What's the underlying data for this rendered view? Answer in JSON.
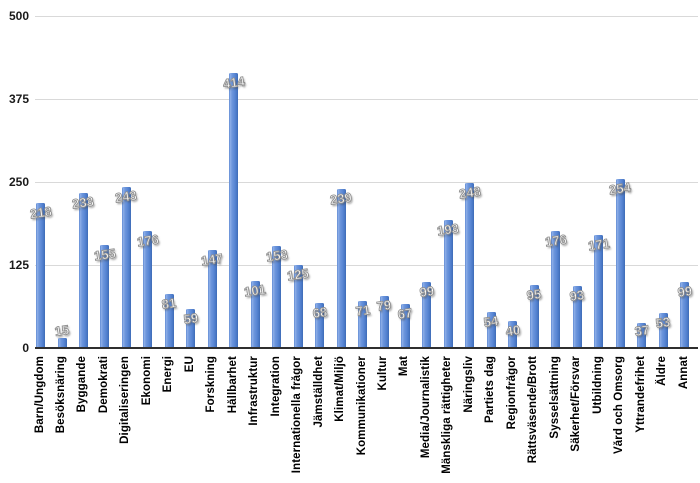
{
  "chart_data": {
    "type": "bar",
    "categories": [
      "Barn/Ungdom",
      "Besöksnäring",
      "Byggande",
      "Demokrati",
      "Digitaliseringen",
      "Ekonomi",
      "Energi",
      "EU",
      "Forskning",
      "Hållbarhet",
      "Infrastruktur",
      "Integration",
      "Internationella frågor",
      "Jämställdhet",
      "Klimat/Miljö",
      "Kommunikationer",
      "Kultur",
      "Mat",
      "Media/Journalistik",
      "Mänskliga rättigheter",
      "Näringsliv",
      "Partiets dag",
      "Regionfrågor",
      "Rättsväsende/Brott",
      "Sysselsättning",
      "Säkerhet/Försvar",
      "Utbildning",
      "Vård och Omsorg",
      "Yttrandefrihet",
      "Äldre",
      "Annat"
    ],
    "values": [
      218,
      15,
      233,
      155,
      243,
      176,
      81,
      59,
      147,
      414,
      101,
      153,
      125,
      68,
      239,
      71,
      79,
      67,
      99,
      193,
      248,
      54,
      40,
      95,
      176,
      93,
      171,
      254,
      37,
      53,
      99
    ],
    "ylim": [
      0,
      500
    ],
    "yticks": [
      0,
      125,
      250,
      375,
      500
    ],
    "grid": true,
    "legend": false,
    "data_labels": true,
    "bar_color": "#5c89d6",
    "gridline_color": "#d9d9d9",
    "axis_color": "#2f2f2f",
    "value_label_color": "#ffffff",
    "tick_label_color": "#1a1a1a"
  }
}
